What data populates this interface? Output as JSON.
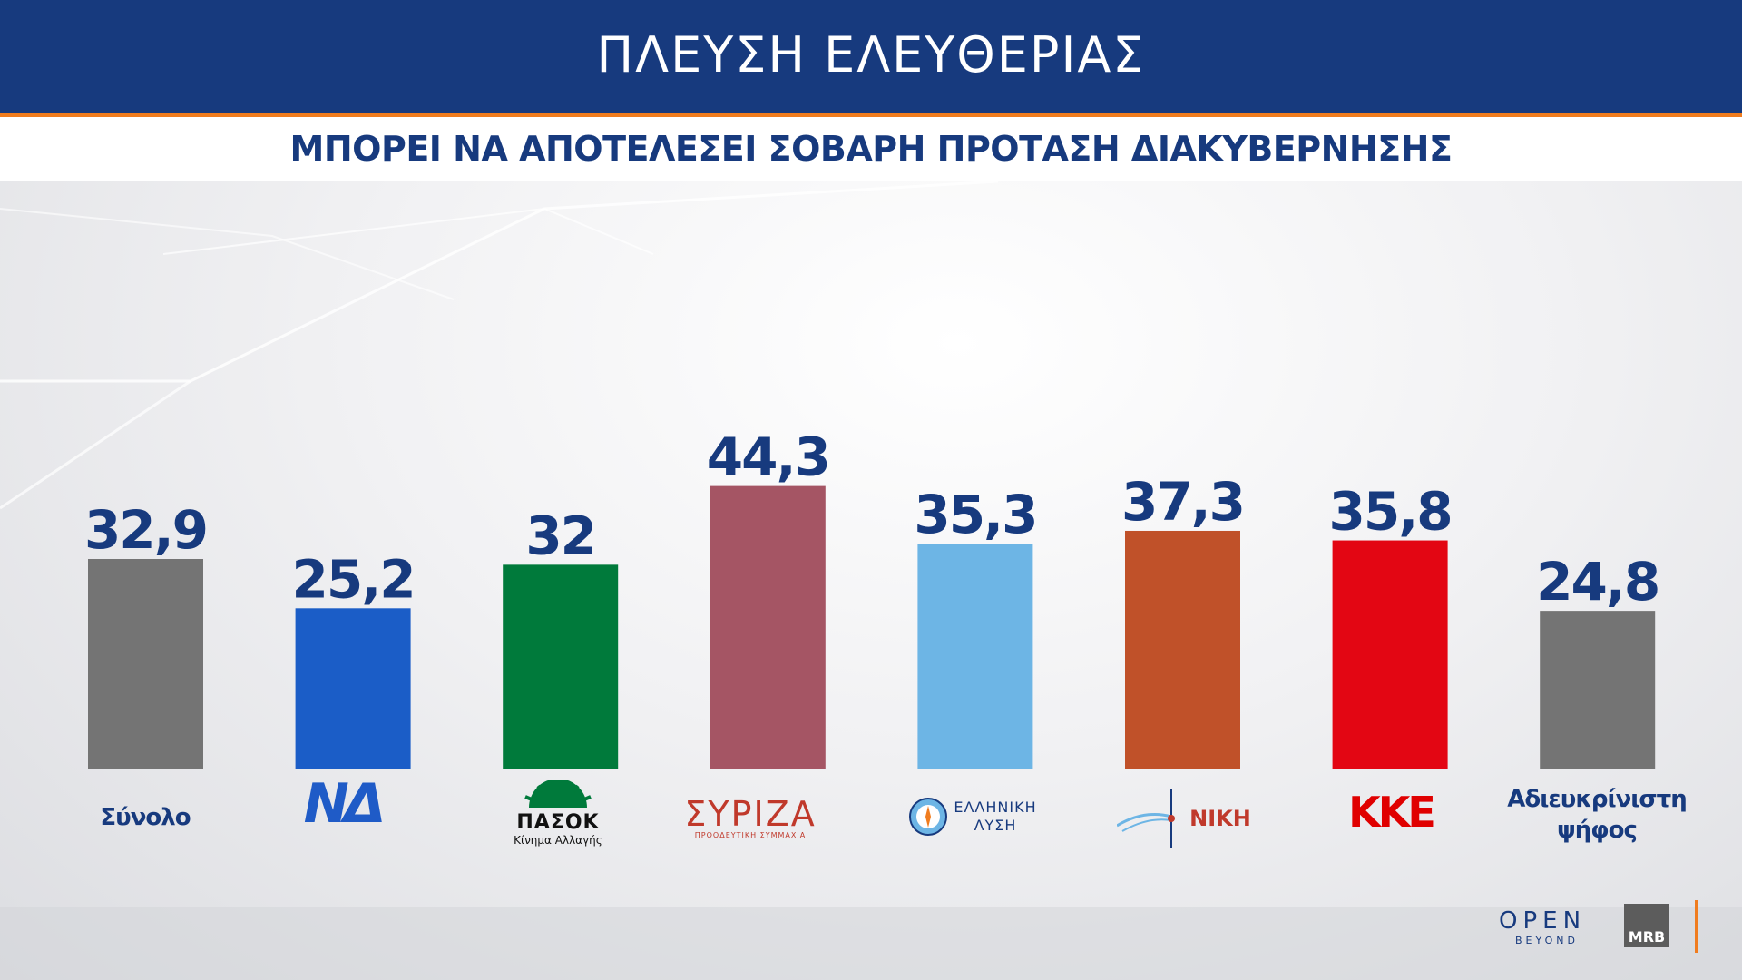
{
  "header": {
    "title": "ΠΛΕΥΣΗ ΕΛΕΥΘΕΡΙΑΣ",
    "subtitle": "ΜΠΟΡΕΙ ΝΑ ΑΠΟΤΕΛΕΣΕΙ ΣΟΒΑΡΗ ΠΡΟΤΑΣΗ ΔΙΑΚΥΒΕΡΝΗΣΗΣ"
  },
  "chart_data": {
    "type": "bar",
    "categories": [
      "Σύνολο",
      "ΝΔ",
      "ΠΑΣΟΚ",
      "ΣΥΡΙΖΑ",
      "ΕΛΛΗΝΙΚΗ ΛΥΣΗ",
      "ΝΙΚΗ",
      "ΚΚΕ",
      "Αδιευκρίνιστη ψήφος"
    ],
    "values": [
      32.9,
      25.2,
      32,
      44.3,
      35.3,
      37.3,
      35.8,
      24.8
    ],
    "value_labels": [
      "32,9",
      "25,2",
      "32",
      "44,3",
      "35,3",
      "37,3",
      "35,8",
      "24,8"
    ],
    "colors": [
      "#747474",
      "#1b5dc7",
      "#007a3b",
      "#a55564",
      "#6db5e5",
      "#c05129",
      "#e30613",
      "#747474"
    ],
    "ylim": [
      0,
      50
    ],
    "grid": false,
    "legend": "none"
  },
  "category_labels": {
    "total": "Σύνολο",
    "nd": "ΝΔ",
    "pasok_name": "ΠΑΣΟΚ",
    "pasok_sub": "Κίνημα Αλλαγής",
    "syriza_name": "ΣΥΡΙΖΑ",
    "syriza_sub": "ΠΡΟΟΔΕΥΤΙΚΗ ΣΥΜΜΑΧΙΑ",
    "el_line1": "ΕΛΛΗΝΙΚΗ",
    "el_line2": "ΛΥΣΗ",
    "niki": "ΝΙΚΗ",
    "kke": "ΚΚΕ",
    "undecided_line1": "Αδιευκρίνιστη",
    "undecided_line2": "ψήφος"
  },
  "footer": {
    "open": "OPEN",
    "beyond": "BEYOND",
    "mrb": "MRB"
  },
  "colors": {
    "header_bg": "#173a7e",
    "accent_orange": "#f07c1e",
    "text_blue": "#173a7e"
  }
}
